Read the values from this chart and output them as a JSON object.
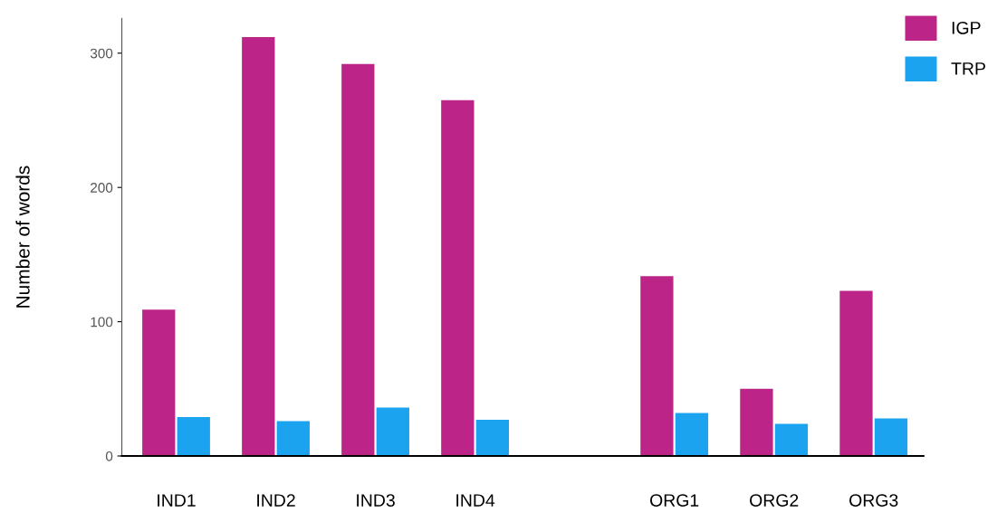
{
  "chart_data": {
    "type": "bar",
    "ylabel": "Number of words",
    "categories": [
      "IND1",
      "IND2",
      "IND3",
      "IND4",
      null,
      "ORG1",
      "ORG2",
      "ORG3"
    ],
    "series": [
      {
        "name": "IGP",
        "color": "#bc2587",
        "values": [
          109,
          312,
          292,
          265,
          null,
          134,
          50,
          123
        ]
      },
      {
        "name": "TRP",
        "color": "#1ca3ef",
        "values": [
          29,
          26,
          36,
          27,
          null,
          32,
          24,
          28
        ]
      }
    ],
    "ylim": [
      0,
      326
    ],
    "yticks": [
      0,
      100,
      200,
      300
    ],
    "grid": false,
    "legend": "top right"
  }
}
